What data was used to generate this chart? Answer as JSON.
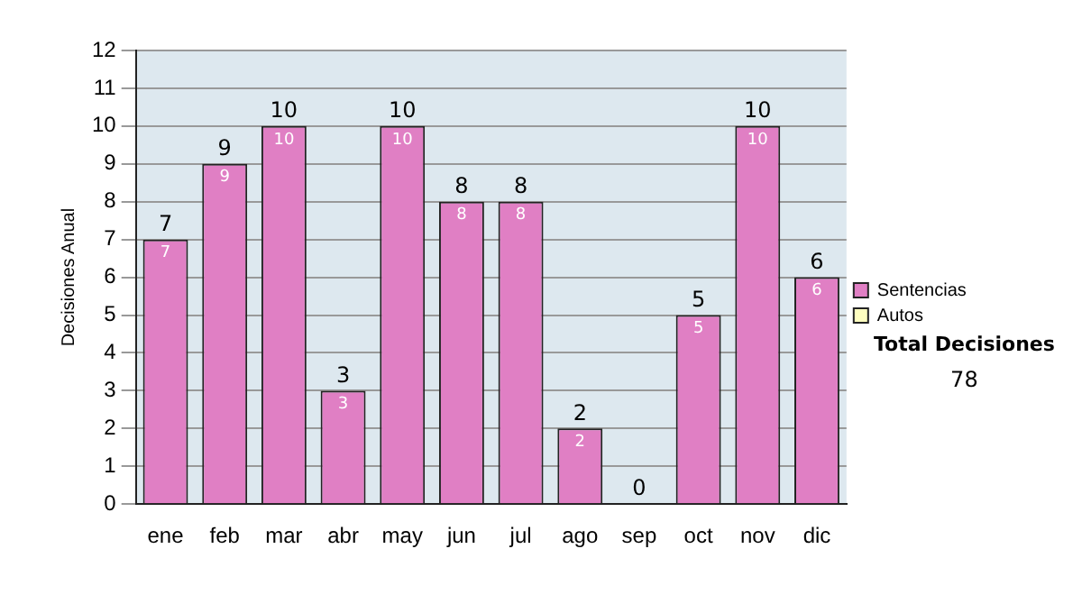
{
  "chart_data": {
    "type": "bar",
    "stacked": true,
    "ylabel": "Decisiones Anual",
    "categories": [
      "ene",
      "feb",
      "mar",
      "abr",
      "may",
      "jun",
      "jul",
      "ago",
      "sep",
      "oct",
      "nov",
      "dic"
    ],
    "series": [
      {
        "name": "Sentencias",
        "color": "#e07fc4",
        "values": [
          7,
          9,
          10,
          3,
          10,
          8,
          8,
          2,
          0,
          5,
          10,
          6
        ],
        "value_labels": [
          "7",
          "9",
          "10",
          "3",
          "10",
          "8",
          "8",
          "2",
          null,
          "5",
          "10",
          "6"
        ]
      },
      {
        "name": "Autos",
        "color": "#ffffc0",
        "values": [
          0,
          0,
          0,
          0,
          0,
          0,
          0,
          0,
          0,
          0,
          0,
          0
        ]
      }
    ],
    "totals": [
      "7",
      "9",
      "10",
      "3",
      "10",
      "8",
      "8",
      "2",
      "0",
      "5",
      "10",
      "6"
    ],
    "ylim": [
      0,
      12
    ],
    "yticks": [
      0,
      1,
      2,
      3,
      4,
      5,
      6,
      7,
      8,
      9,
      10,
      11,
      12
    ],
    "grid": "y",
    "legend": "right",
    "annotations": [
      "Total Decisiones",
      "78"
    ]
  }
}
